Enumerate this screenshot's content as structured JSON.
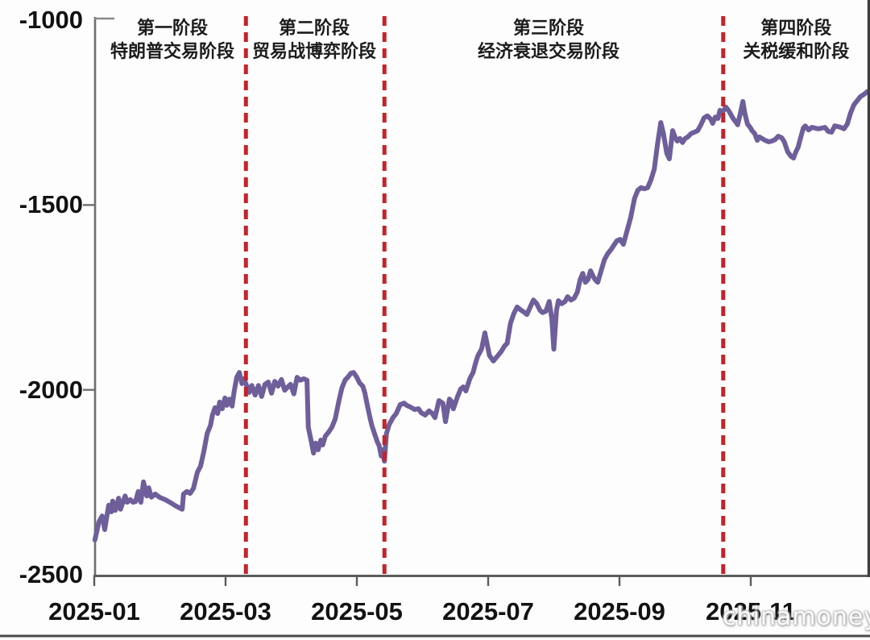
{
  "watermark": "chinamoney",
  "chart_data": {
    "type": "line",
    "title": "",
    "xlabel": "",
    "ylabel": "",
    "x_tick_labels": [
      "2025-01",
      "2025-03",
      "2025-05",
      "2025-07",
      "2025-09",
      "2025-11"
    ],
    "x_tick_positions_months": [
      0,
      2,
      4,
      6,
      8,
      10
    ],
    "y_tick_labels": [
      "-1000",
      "-1500",
      "-2000",
      "-2500"
    ],
    "y_tick_values": [
      -1000,
      -1500,
      -2000,
      -2500
    ],
    "ylim": [
      -2500,
      -1000
    ],
    "xlim_months": [
      0,
      11.82
    ],
    "grid": false,
    "legend": "none",
    "line_color": "#6e5f9b",
    "divider_color": "#c4232a",
    "axis_color": "#5c5c5c",
    "text_color": "#121212",
    "phases": [
      {
        "label_line1": "第一阶段",
        "label_line2": "特朗普交易阶段",
        "center_months": 1.19
      },
      {
        "label_line1": "第二阶段",
        "label_line2": "贸易战博弈阶段",
        "center_months": 3.35
      },
      {
        "label_line1": "第三阶段",
        "label_line2": "经济衰退交易阶段",
        "center_months": 6.92
      },
      {
        "label_line1": "第四阶段",
        "label_line2": "关税缓和阶段",
        "center_months": 10.69
      }
    ],
    "divider_positions_months": [
      2.31,
      4.42,
      9.58
    ],
    "series": [
      {
        "name": "",
        "points": [
          [
            0.01,
            -2406
          ],
          [
            0.07,
            -2358
          ],
          [
            0.12,
            -2341
          ],
          [
            0.16,
            -2378
          ],
          [
            0.22,
            -2312
          ],
          [
            0.26,
            -2330
          ],
          [
            0.28,
            -2301
          ],
          [
            0.32,
            -2326
          ],
          [
            0.37,
            -2293
          ],
          [
            0.4,
            -2323
          ],
          [
            0.47,
            -2287
          ],
          [
            0.5,
            -2304
          ],
          [
            0.55,
            -2297
          ],
          [
            0.59,
            -2304
          ],
          [
            0.63,
            -2302
          ],
          [
            0.67,
            -2275
          ],
          [
            0.71,
            -2304
          ],
          [
            0.75,
            -2249
          ],
          [
            0.8,
            -2287
          ],
          [
            0.83,
            -2265
          ],
          [
            0.87,
            -2290
          ],
          [
            0.93,
            -2282
          ],
          [
            0.99,
            -2290
          ],
          [
            1.08,
            -2297
          ],
          [
            1.17,
            -2306
          ],
          [
            1.25,
            -2315
          ],
          [
            1.34,
            -2323
          ],
          [
            1.36,
            -2282
          ],
          [
            1.41,
            -2275
          ],
          [
            1.46,
            -2280
          ],
          [
            1.51,
            -2267
          ],
          [
            1.57,
            -2223
          ],
          [
            1.62,
            -2206
          ],
          [
            1.67,
            -2166
          ],
          [
            1.72,
            -2118
          ],
          [
            1.77,
            -2096
          ],
          [
            1.8,
            -2068
          ],
          [
            1.84,
            -2048
          ],
          [
            1.88,
            -2064
          ],
          [
            1.91,
            -2033
          ],
          [
            1.95,
            -2051
          ],
          [
            1.99,
            -2022
          ],
          [
            2.02,
            -2042
          ],
          [
            2.06,
            -2025
          ],
          [
            2.1,
            -2044
          ],
          [
            2.13,
            -2005
          ],
          [
            2.17,
            -1966
          ],
          [
            2.21,
            -1953
          ],
          [
            2.25,
            -1983
          ],
          [
            2.28,
            -1970
          ],
          [
            2.32,
            -1988
          ],
          [
            2.36,
            -2007
          ],
          [
            2.4,
            -1988
          ],
          [
            2.45,
            -2014
          ],
          [
            2.5,
            -1988
          ],
          [
            2.55,
            -2018
          ],
          [
            2.6,
            -1985
          ],
          [
            2.65,
            -1979
          ],
          [
            2.7,
            -2009
          ],
          [
            2.75,
            -1977
          ],
          [
            2.8,
            -1990
          ],
          [
            2.85,
            -1972
          ],
          [
            2.9,
            -2001
          ],
          [
            2.94,
            -1994
          ],
          [
            2.99,
            -1985
          ],
          [
            3.04,
            -2011
          ],
          [
            3.09,
            -1966
          ],
          [
            3.14,
            -1974
          ],
          [
            3.19,
            -1970
          ],
          [
            3.24,
            -1974
          ],
          [
            3.26,
            -2101
          ],
          [
            3.3,
            -2134
          ],
          [
            3.34,
            -2171
          ],
          [
            3.37,
            -2144
          ],
          [
            3.41,
            -2162
          ],
          [
            3.45,
            -2136
          ],
          [
            3.48,
            -2149
          ],
          [
            3.52,
            -2125
          ],
          [
            3.57,
            -2114
          ],
          [
            3.62,
            -2101
          ],
          [
            3.67,
            -2079
          ],
          [
            3.72,
            -2035
          ],
          [
            3.77,
            -1996
          ],
          [
            3.82,
            -1974
          ],
          [
            3.87,
            -1964
          ],
          [
            3.91,
            -1955
          ],
          [
            3.95,
            -1953
          ],
          [
            4.0,
            -1966
          ],
          [
            4.04,
            -1981
          ],
          [
            4.09,
            -1990
          ],
          [
            4.12,
            -2007
          ],
          [
            4.16,
            -2042
          ],
          [
            4.2,
            -2075
          ],
          [
            4.23,
            -2097
          ],
          [
            4.27,
            -2119
          ],
          [
            4.31,
            -2140
          ],
          [
            4.34,
            -2151
          ],
          [
            4.37,
            -2179
          ],
          [
            4.39,
            -2162
          ],
          [
            4.42,
            -2193
          ],
          [
            4.45,
            -2119
          ],
          [
            4.49,
            -2095
          ],
          [
            4.55,
            -2075
          ],
          [
            4.6,
            -2064
          ],
          [
            4.66,
            -2040
          ],
          [
            4.72,
            -2036
          ],
          [
            4.76,
            -2042
          ],
          [
            4.82,
            -2047
          ],
          [
            4.88,
            -2053
          ],
          [
            4.94,
            -2051
          ],
          [
            4.98,
            -2062
          ],
          [
            5.04,
            -2068
          ],
          [
            5.1,
            -2057
          ],
          [
            5.15,
            -2064
          ],
          [
            5.19,
            -2075
          ],
          [
            5.25,
            -2029
          ],
          [
            5.31,
            -2036
          ],
          [
            5.35,
            -2086
          ],
          [
            5.41,
            -2025
          ],
          [
            5.44,
            -2031
          ],
          [
            5.47,
            -2051
          ],
          [
            5.53,
            -2020
          ],
          [
            5.58,
            -1998
          ],
          [
            5.62,
            -1992
          ],
          [
            5.66,
            -2003
          ],
          [
            5.72,
            -1970
          ],
          [
            5.77,
            -1953
          ],
          [
            5.8,
            -1933
          ],
          [
            5.84,
            -1909
          ],
          [
            5.9,
            -1889
          ],
          [
            5.95,
            -1846
          ],
          [
            6.02,
            -1907
          ],
          [
            6.08,
            -1922
          ],
          [
            6.15,
            -1907
          ],
          [
            6.2,
            -1896
          ],
          [
            6.25,
            -1881
          ],
          [
            6.29,
            -1874
          ],
          [
            6.34,
            -1820
          ],
          [
            6.39,
            -1794
          ],
          [
            6.44,
            -1776
          ],
          [
            6.49,
            -1783
          ],
          [
            6.54,
            -1789
          ],
          [
            6.59,
            -1796
          ],
          [
            6.64,
            -1776
          ],
          [
            6.69,
            -1757
          ],
          [
            6.74,
            -1767
          ],
          [
            6.79,
            -1785
          ],
          [
            6.83,
            -1791
          ],
          [
            6.88,
            -1787
          ],
          [
            6.93,
            -1761
          ],
          [
            6.97,
            -1809
          ],
          [
            7.0,
            -1890
          ],
          [
            7.04,
            -1785
          ],
          [
            7.07,
            -1759
          ],
          [
            7.12,
            -1767
          ],
          [
            7.17,
            -1761
          ],
          [
            7.21,
            -1748
          ],
          [
            7.26,
            -1757
          ],
          [
            7.31,
            -1752
          ],
          [
            7.36,
            -1735
          ],
          [
            7.4,
            -1702
          ],
          [
            7.44,
            -1685
          ],
          [
            7.48,
            -1709
          ],
          [
            7.52,
            -1702
          ],
          [
            7.56,
            -1678
          ],
          [
            7.6,
            -1693
          ],
          [
            7.63,
            -1702
          ],
          [
            7.67,
            -1709
          ],
          [
            7.72,
            -1678
          ],
          [
            7.77,
            -1648
          ],
          [
            7.82,
            -1632
          ],
          [
            7.87,
            -1621
          ],
          [
            7.91,
            -1610
          ],
          [
            7.96,
            -1597
          ],
          [
            8.01,
            -1593
          ],
          [
            8.06,
            -1606
          ],
          [
            8.11,
            -1573
          ],
          [
            8.17,
            -1534
          ],
          [
            8.23,
            -1482
          ],
          [
            8.28,
            -1460
          ],
          [
            8.33,
            -1453
          ],
          [
            8.38,
            -1456
          ],
          [
            8.43,
            -1453
          ],
          [
            8.48,
            -1432
          ],
          [
            8.53,
            -1403
          ],
          [
            8.58,
            -1334
          ],
          [
            8.63,
            -1277
          ],
          [
            8.67,
            -1307
          ],
          [
            8.72,
            -1360
          ],
          [
            8.76,
            -1375
          ],
          [
            8.81,
            -1299
          ],
          [
            8.85,
            -1318
          ],
          [
            8.88,
            -1327
          ],
          [
            8.92,
            -1320
          ],
          [
            8.96,
            -1331
          ],
          [
            9.0,
            -1320
          ],
          [
            9.04,
            -1316
          ],
          [
            9.09,
            -1307
          ],
          [
            9.14,
            -1303
          ],
          [
            9.19,
            -1299
          ],
          [
            9.24,
            -1283
          ],
          [
            9.29,
            -1264
          ],
          [
            9.34,
            -1259
          ],
          [
            9.39,
            -1268
          ],
          [
            9.42,
            -1279
          ],
          [
            9.46,
            -1262
          ],
          [
            9.5,
            -1266
          ],
          [
            9.53,
            -1244
          ],
          [
            9.57,
            -1249
          ],
          [
            9.62,
            -1235
          ],
          [
            9.66,
            -1244
          ],
          [
            9.69,
            -1253
          ],
          [
            9.73,
            -1266
          ],
          [
            9.77,
            -1275
          ],
          [
            9.8,
            -1283
          ],
          [
            9.84,
            -1253
          ],
          [
            9.88,
            -1220
          ],
          [
            9.91,
            -1253
          ],
          [
            9.95,
            -1281
          ],
          [
            9.99,
            -1290
          ],
          [
            10.02,
            -1299
          ],
          [
            10.06,
            -1307
          ],
          [
            10.1,
            -1325
          ],
          [
            10.13,
            -1316
          ],
          [
            10.17,
            -1320
          ],
          [
            10.22,
            -1325
          ],
          [
            10.27,
            -1329
          ],
          [
            10.32,
            -1327
          ],
          [
            10.37,
            -1323
          ],
          [
            10.42,
            -1314
          ],
          [
            10.47,
            -1318
          ],
          [
            10.51,
            -1329
          ],
          [
            10.56,
            -1355
          ],
          [
            10.61,
            -1368
          ],
          [
            10.65,
            -1373
          ],
          [
            10.69,
            -1355
          ],
          [
            10.72,
            -1344
          ],
          [
            10.76,
            -1318
          ],
          [
            10.8,
            -1292
          ],
          [
            10.83,
            -1286
          ],
          [
            10.88,
            -1297
          ],
          [
            10.93,
            -1290
          ],
          [
            10.98,
            -1292
          ],
          [
            11.03,
            -1294
          ],
          [
            11.08,
            -1292
          ],
          [
            11.13,
            -1290
          ],
          [
            11.18,
            -1301
          ],
          [
            11.23,
            -1303
          ],
          [
            11.28,
            -1286
          ],
          [
            11.33,
            -1288
          ],
          [
            11.37,
            -1290
          ],
          [
            11.42,
            -1294
          ],
          [
            11.47,
            -1281
          ],
          [
            11.52,
            -1251
          ],
          [
            11.57,
            -1229
          ],
          [
            11.62,
            -1218
          ],
          [
            11.67,
            -1207
          ],
          [
            11.72,
            -1201
          ],
          [
            11.77,
            -1194
          ],
          [
            11.82,
            -1190
          ]
        ]
      }
    ]
  }
}
